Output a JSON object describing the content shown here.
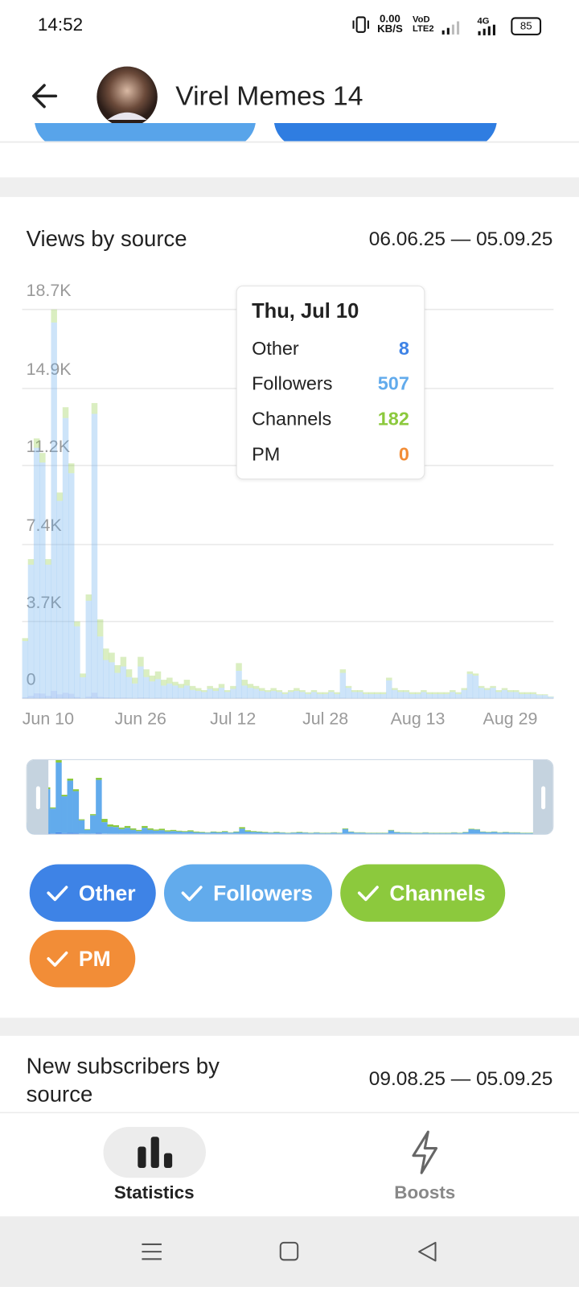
{
  "status_bar": {
    "time": "14:52",
    "speed": "0.00",
    "speed_unit": "KB/S",
    "volte": "VoD",
    "volte_sub": "LTE2",
    "network": "4G",
    "battery": "85"
  },
  "header": {
    "title": "Virel Memes 14"
  },
  "chart_data": {
    "type": "bar",
    "stacked": true,
    "title": "Views by source",
    "date_range": "06.06.25 — 05.09.25",
    "categories": [
      null,
      null,
      null,
      null,
      "Jun 10",
      null,
      null,
      null,
      null,
      null,
      null,
      null,
      null,
      null,
      null,
      null,
      null,
      null,
      null,
      null,
      "Jun 26",
      null,
      null,
      null,
      null,
      null,
      null,
      null,
      null,
      null,
      null,
      null,
      null,
      null,
      null,
      null,
      "Jul 12",
      null,
      null,
      null,
      null,
      null,
      null,
      null,
      null,
      null,
      null,
      null,
      null,
      null,
      null,
      null,
      "Jul 28",
      null,
      null,
      null,
      null,
      null,
      null,
      null,
      null,
      null,
      null,
      null,
      null,
      null,
      null,
      null,
      "Aug 13",
      null,
      null,
      null,
      null,
      null,
      null,
      null,
      null,
      null,
      null,
      null,
      null,
      null,
      null,
      null,
      "Aug 29",
      null,
      null,
      null,
      null,
      null,
      null,
      null
    ],
    "series": [
      {
        "name": "Other",
        "color": "#3e83e6",
        "values": [
          60,
          130,
          250,
          240,
          130,
          370,
          200,
          280,
          230,
          70,
          20,
          100,
          280,
          80,
          50,
          40,
          30,
          40,
          30,
          20,
          40,
          30,
          20,
          30,
          20,
          20,
          20,
          10,
          20,
          10,
          10,
          10,
          10,
          10,
          8,
          10,
          10,
          30,
          20,
          10,
          10,
          10,
          10,
          10,
          10,
          10,
          10,
          10,
          10,
          10,
          10,
          10,
          10,
          10,
          10,
          30,
          10,
          10,
          10,
          10,
          10,
          10,
          10,
          20,
          10,
          10,
          10,
          10,
          10,
          10,
          10,
          10,
          10,
          10,
          10,
          10,
          10,
          30,
          20,
          10,
          10,
          10,
          10,
          10,
          10,
          10,
          10,
          10,
          10,
          10,
          10,
          10
        ]
      },
      {
        "name": "Followers",
        "color": "#62abec",
        "values": [
          2700,
          6300,
          11800,
          11100,
          6300,
          17700,
          9300,
          13200,
          10600,
          3400,
          1000,
          4600,
          13400,
          2900,
          1800,
          1700,
          1200,
          1500,
          1000,
          700,
          1500,
          1000,
          800,
          900,
          600,
          700,
          600,
          500,
          600,
          400,
          350,
          300,
          450,
          350,
          507,
          300,
          450,
          1300,
          600,
          500,
          450,
          350,
          300,
          350,
          300,
          200,
          300,
          350,
          300,
          200,
          300,
          200,
          200,
          300,
          200,
          1200,
          500,
          300,
          300,
          200,
          200,
          200,
          200,
          850,
          400,
          300,
          300,
          200,
          200,
          300,
          200,
          200,
          200,
          200,
          300,
          200,
          400,
          1150,
          1080,
          500,
          400,
          500,
          300,
          400,
          300,
          300,
          200,
          200,
          200,
          150,
          150,
          70
        ]
      },
      {
        "name": "Channels",
        "color": "#8cc93d",
        "values": [
          140,
          270,
          450,
          460,
          270,
          630,
          400,
          520,
          470,
          230,
          180,
          300,
          520,
          820,
          550,
          460,
          370,
          460,
          370,
          280,
          460,
          370,
          280,
          370,
          280,
          280,
          180,
          190,
          280,
          190,
          140,
          90,
          140,
          140,
          182,
          90,
          140,
          370,
          280,
          190,
          140,
          140,
          90,
          140,
          90,
          90,
          90,
          140,
          90,
          90,
          90,
          90,
          90,
          90,
          90,
          170,
          90,
          90,
          90,
          90,
          90,
          90,
          90,
          130,
          90,
          90,
          90,
          90,
          90,
          90,
          90,
          90,
          90,
          90,
          90,
          90,
          90,
          120,
          100,
          90,
          90,
          90,
          90,
          90,
          90,
          90,
          90,
          90,
          90,
          40,
          40,
          20
        ]
      },
      {
        "name": "PM",
        "color": "#f28d37",
        "values": [
          0,
          0,
          0,
          0,
          0,
          0,
          0,
          0,
          0,
          0,
          0,
          0,
          0,
          0,
          0,
          0,
          0,
          0,
          0,
          0,
          0,
          0,
          0,
          0,
          0,
          0,
          0,
          0,
          0,
          0,
          0,
          0,
          0,
          0,
          0,
          0,
          0,
          0,
          0,
          0,
          0,
          0,
          0,
          0,
          0,
          0,
          0,
          0,
          0,
          0,
          0,
          0,
          0,
          0,
          0,
          0,
          0,
          0,
          0,
          0,
          0,
          0,
          0,
          0,
          0,
          0,
          0,
          0,
          0,
          0,
          0,
          0,
          0,
          0,
          0,
          0,
          0,
          0,
          0,
          0,
          0,
          0,
          0,
          0,
          0,
          0,
          0,
          0,
          0,
          0,
          0,
          0
        ]
      }
    ],
    "ylim": [
      0,
      18700
    ],
    "yticks": [
      0,
      {
        "value": 3700,
        "label": "3.7K"
      },
      {
        "value": 7400,
        "label": "7.4K"
      },
      {
        "value": 11200,
        "label": "11.2K"
      },
      {
        "value": 14900,
        "label": "14.9K"
      },
      {
        "value": 18700,
        "label": "18.7K"
      }
    ],
    "grid": true,
    "tooltip": {
      "title": "Thu, Jul 10"
    }
  },
  "next_section": {
    "title": "New subscribers by source",
    "date_range": "09.08.25 — 05.09.25"
  },
  "bottom_nav": {
    "tabs": [
      {
        "label": "Statistics"
      },
      {
        "label": "Boosts"
      }
    ]
  }
}
